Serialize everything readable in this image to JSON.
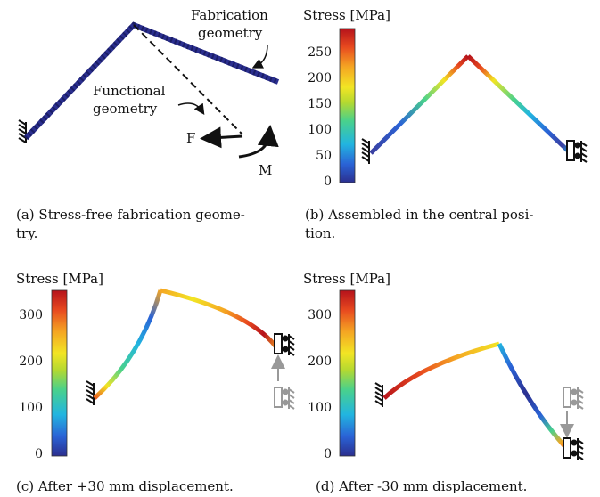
{
  "colorbar_colors": [
    "#2b2f8f",
    "#2a63d6",
    "#22b5e0",
    "#49d18c",
    "#b5d930",
    "#f2e524",
    "#f5a623",
    "#e84a1f",
    "#b5121b"
  ],
  "panels": {
    "a": {
      "caption_line1": "(a) Stress-free fabrication geome-",
      "caption_line2": "try.",
      "label_fabrication_1": "Fabrication",
      "label_fabrication_2": "geometry",
      "label_functional_1": "Functional",
      "label_functional_2": "geometry",
      "label_force": "F",
      "label_moment": "M"
    },
    "b": {
      "caption_line1": "(b) Assembled in the central posi-",
      "caption_line2": "tion.",
      "colorbar_title": "Stress [MPa]",
      "ticks": [
        "250",
        "200",
        "150",
        "100",
        "50",
        "0"
      ]
    },
    "c": {
      "caption": "(c) After +30 mm displacement.",
      "colorbar_title": "Stress [MPa]",
      "ticks": [
        "300",
        "200",
        "100",
        "0"
      ]
    },
    "d": {
      "caption": "(d) After -30 mm displacement.",
      "colorbar_title": "Stress [MPa]",
      "ticks": [
        "300",
        "200",
        "100",
        "0"
      ]
    }
  }
}
